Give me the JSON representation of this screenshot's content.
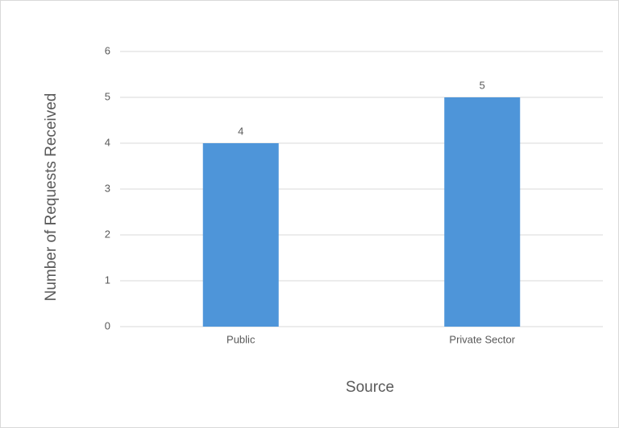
{
  "chart_data": {
    "type": "bar",
    "categories": [
      "Public",
      "Private Sector"
    ],
    "values": [
      4,
      5
    ],
    "color": "#4e95d9",
    "xlabel": "Source",
    "ylabel": "Number of Requests Received",
    "ylim": [
      0,
      6
    ],
    "yticks": [
      0,
      1,
      2,
      3,
      4,
      5,
      6
    ],
    "grid": true
  }
}
